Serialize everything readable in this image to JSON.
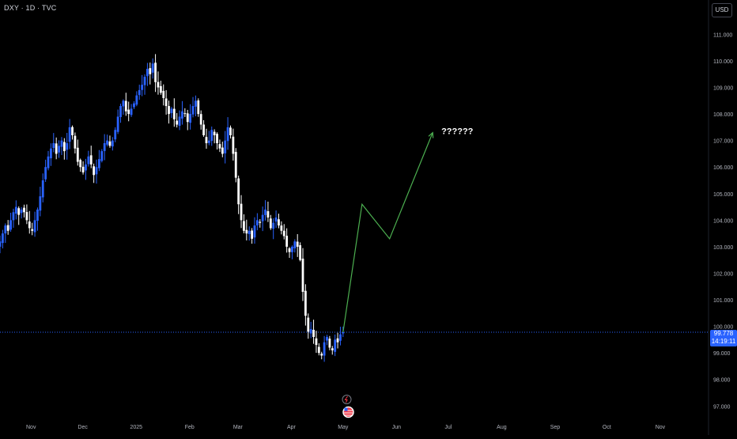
{
  "header": {
    "symbol_line": "DXY · 1D · TVC"
  },
  "currency_button": "USD",
  "current_price": {
    "value": "99.778",
    "countdown": "14:19:11"
  },
  "annotation": "??????",
  "colors": {
    "bull": "#2962ff",
    "bear": "#ffffff",
    "projection": "#4caf50",
    "price_line": "#2962ff",
    "axis_text": "#b2b5be"
  },
  "event_icons": [
    "lightning-event-icon",
    "us-flag-event-icon"
  ],
  "chart_data": {
    "type": "candlestick",
    "title": "",
    "ylim": [
      96.8,
      111.4
    ],
    "y_ticks": [
      97,
      98,
      99,
      100,
      101,
      102,
      103,
      104,
      105,
      106,
      107,
      108,
      109,
      110,
      111
    ],
    "y_tick_labels": [
      "97.000",
      "98.000",
      "99.000",
      "100.000",
      "101.000",
      "102.000",
      "103.000",
      "104.000",
      "105.000",
      "106.000",
      "107.000",
      "108.000",
      "109.000",
      "110.000",
      "111.000"
    ],
    "x_tick_labels": [
      "Nov",
      "Dec",
      "2025",
      "Feb",
      "Mar",
      "Apr",
      "May",
      "Jun",
      "Jul",
      "Aug",
      "Sep",
      "Oct",
      "Nov"
    ],
    "x_range": [
      "2024-10-14",
      "2025-11-29"
    ],
    "x_tick_dates": [
      "2024-11-01",
      "2024-12-01",
      "2025-01-01",
      "2025-02-01",
      "2025-03-01",
      "2025-04-01",
      "2025-05-01",
      "2025-06-01",
      "2025-07-01",
      "2025-08-01",
      "2025-09-01",
      "2025-10-01",
      "2025-11-01"
    ],
    "closes": [
      103.2,
      103.5,
      103.8,
      103.6,
      104.0,
      104.3,
      104.5,
      104.2,
      104.4,
      104.3,
      104.0,
      103.7,
      103.6,
      104.0,
      104.4,
      104.9,
      105.5,
      106.0,
      106.4,
      106.7,
      106.9,
      106.5,
      106.8,
      107.0,
      106.6,
      106.9,
      107.5,
      107.2,
      106.7,
      106.2,
      106.0,
      105.8,
      106.1,
      106.4,
      106.1,
      105.7,
      106.0,
      106.3,
      106.6,
      106.9,
      107.0,
      106.8,
      107.0,
      107.4,
      107.9,
      108.3,
      108.5,
      108.1,
      108.0,
      108.2,
      108.4,
      108.7,
      108.9,
      109.1,
      109.4,
      109.7,
      109.5,
      109.9,
      109.2,
      109.0,
      108.8,
      108.6,
      108.3,
      108.0,
      108.2,
      107.8,
      107.6,
      107.9,
      108.1,
      108.0,
      107.7,
      108.0,
      108.3,
      108.5,
      108.0,
      107.6,
      107.2,
      106.9,
      107.0,
      107.4,
      107.2,
      106.9,
      106.7,
      106.5,
      107.0,
      107.5,
      107.2,
      106.5,
      105.6,
      104.6,
      104.0,
      103.6,
      103.5,
      103.6,
      103.3,
      103.8,
      104.0,
      103.9,
      104.2,
      104.4,
      104.1,
      103.7,
      103.9,
      104.1,
      103.8,
      103.6,
      103.4,
      103.0,
      102.8,
      103.0,
      103.2,
      103.0,
      102.5,
      101.3,
      100.4,
      99.8,
      99.9,
      99.6,
      99.3,
      99.0,
      98.9,
      99.4,
      99.6,
      99.2,
      99.1,
      99.5,
      99.4,
      99.7,
      99.778
    ],
    "projection": [
      {
        "date": "2025-05-01",
        "value": 99.778
      },
      {
        "date": "2025-05-12",
        "value": 104.6
      },
      {
        "date": "2025-05-28",
        "value": 103.3
      },
      {
        "date": "2025-06-22",
        "value": 107.3
      }
    ],
    "annotation_point": {
      "date": "2025-06-27",
      "value": 107.25
    },
    "current_price_line": 99.778
  }
}
